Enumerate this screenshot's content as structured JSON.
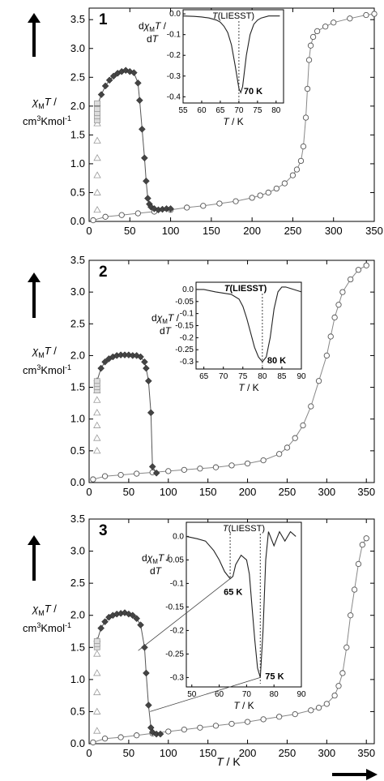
{
  "ylabel": {
    "line1": "χMT /",
    "line2": "cm3Kmol-1"
  },
  "xlabel": "T / K",
  "inset_ylabel": {
    "line1": "dχMT /",
    "line2": "dT"
  },
  "inset_xlabel": "T / K",
  "liesst_label": "T(LIESST)",
  "arrow_up": "up-arrow",
  "arrow_right": "right-arrow",
  "chart_data": [
    {
      "panel": "1",
      "type": "scatter",
      "xlim": [
        0,
        350
      ],
      "ylim": [
        0,
        3.7
      ],
      "xticks": [
        0,
        50,
        100,
        150,
        200,
        250,
        300,
        350
      ],
      "yticks": [
        0.0,
        0.5,
        1.0,
        1.5,
        2.0,
        2.5,
        3.0,
        3.5
      ],
      "series": [
        {
          "marker": "circle",
          "x": [
            5,
            20,
            40,
            60,
            80,
            100,
            120,
            140,
            160,
            180,
            200,
            210,
            220,
            230,
            240,
            250,
            255,
            260,
            263,
            266,
            268,
            270,
            272,
            275,
            280,
            290,
            300,
            320,
            340,
            350
          ],
          "y": [
            0.02,
            0.08,
            0.11,
            0.14,
            0.17,
            0.2,
            0.24,
            0.27,
            0.31,
            0.35,
            0.41,
            0.45,
            0.5,
            0.57,
            0.66,
            0.8,
            0.9,
            1.05,
            1.3,
            1.8,
            2.3,
            2.8,
            3.05,
            3.2,
            3.3,
            3.38,
            3.45,
            3.52,
            3.58,
            3.6
          ]
        },
        {
          "marker": "diamond",
          "x": [
            10,
            15,
            20,
            25,
            30,
            35,
            40,
            45,
            50,
            55,
            60,
            62,
            65,
            68,
            70,
            72,
            74,
            76,
            80,
            85,
            90,
            95,
            100
          ],
          "y": [
            2.0,
            2.2,
            2.35,
            2.45,
            2.52,
            2.57,
            2.6,
            2.62,
            2.6,
            2.58,
            2.4,
            2.1,
            1.6,
            1.1,
            0.7,
            0.4,
            0.3,
            0.25,
            0.22,
            0.2,
            0.21,
            0.22,
            0.22
          ]
        },
        {
          "marker": "triangle",
          "x": [
            10,
            10,
            10,
            10,
            10,
            10
          ],
          "y": [
            0.2,
            0.5,
            0.8,
            1.1,
            1.4,
            1.7
          ]
        },
        {
          "marker": "square",
          "x": [
            10,
            10,
            10,
            10,
            10
          ],
          "y": [
            1.75,
            1.82,
            1.88,
            1.95,
            2.05
          ]
        }
      ],
      "inset": {
        "xlim": [
          55,
          82
        ],
        "ylim": [
          -0.43,
          0.02
        ],
        "xticks": [
          55,
          60,
          65,
          70,
          75,
          80
        ],
        "yticks": [
          0.0,
          -0.1,
          -0.2,
          -0.3,
          -0.4
        ],
        "curve_x": [
          55,
          58,
          60,
          62,
          64,
          65,
          66,
          67,
          68,
          69,
          70,
          70.5,
          71,
          72,
          73,
          74,
          75,
          76,
          78,
          80,
          81
        ],
        "curve_y": [
          -0.01,
          -0.012,
          -0.015,
          -0.02,
          -0.03,
          -0.04,
          -0.06,
          -0.09,
          -0.15,
          -0.25,
          -0.36,
          -0.38,
          -0.35,
          -0.2,
          -0.1,
          -0.05,
          -0.03,
          -0.02,
          -0.01,
          -0.01,
          -0.01
        ],
        "min_x": 70,
        "annotation": "70 K"
      }
    },
    {
      "panel": "2",
      "type": "scatter",
      "xlim": [
        0,
        360
      ],
      "ylim": [
        0,
        3.5
      ],
      "xticks": [
        0,
        50,
        100,
        150,
        200,
        250,
        300,
        350
      ],
      "yticks": [
        0.0,
        0.5,
        1.0,
        1.5,
        2.0,
        2.5,
        3.0,
        3.5
      ],
      "series": [
        {
          "marker": "circle",
          "x": [
            5,
            20,
            40,
            60,
            80,
            100,
            120,
            140,
            160,
            180,
            200,
            220,
            240,
            250,
            260,
            270,
            280,
            290,
            300,
            305,
            310,
            315,
            320,
            330,
            340,
            350
          ],
          "y": [
            0.05,
            0.1,
            0.12,
            0.14,
            0.16,
            0.18,
            0.2,
            0.22,
            0.24,
            0.27,
            0.3,
            0.35,
            0.45,
            0.55,
            0.7,
            0.9,
            1.2,
            1.6,
            2.0,
            2.3,
            2.6,
            2.8,
            3.0,
            3.2,
            3.35,
            3.42
          ]
        },
        {
          "marker": "diamond",
          "x": [
            10,
            15,
            20,
            25,
            30,
            35,
            40,
            45,
            50,
            55,
            60,
            65,
            70,
            72,
            75,
            78,
            80,
            85
          ],
          "y": [
            1.6,
            1.8,
            1.9,
            1.95,
            1.98,
            2.0,
            2.01,
            2.01,
            2.01,
            2.0,
            2.0,
            1.98,
            1.9,
            1.8,
            1.6,
            1.1,
            0.25,
            0.15
          ]
        },
        {
          "marker": "triangle",
          "x": [
            10,
            10,
            10,
            10,
            10,
            10
          ],
          "y": [
            0.5,
            0.7,
            0.9,
            1.1,
            1.3,
            1.45
          ]
        },
        {
          "marker": "square",
          "x": [
            10,
            10,
            10,
            10
          ],
          "y": [
            1.45,
            1.5,
            1.55,
            1.6
          ]
        }
      ],
      "inset": {
        "xlim": [
          63,
          90
        ],
        "ylim": [
          -0.33,
          0.03
        ],
        "xticks": [
          65,
          70,
          75,
          80,
          85,
          90
        ],
        "yticks": [
          0.0,
          -0.05,
          -0.1,
          -0.15,
          -0.2,
          -0.25,
          -0.3
        ],
        "curve_x": [
          63,
          65,
          68,
          70,
          72,
          74,
          75,
          76,
          77,
          78,
          79,
          80,
          81,
          82,
          83,
          84,
          85,
          86,
          87,
          88,
          89,
          90
        ],
        "curve_y": [
          0.0,
          0.0,
          -0.01,
          -0.015,
          -0.02,
          -0.04,
          -0.07,
          -0.12,
          -0.18,
          -0.24,
          -0.28,
          -0.3,
          -0.28,
          -0.2,
          -0.08,
          -0.01,
          0.01,
          0.01,
          0.005,
          0.0,
          -0.005,
          -0.01
        ],
        "min_x": 80,
        "annotation": "80 K"
      }
    },
    {
      "panel": "3",
      "type": "scatter",
      "xlim": [
        0,
        360
      ],
      "ylim": [
        0,
        3.5
      ],
      "xticks": [
        0,
        50,
        100,
        150,
        200,
        250,
        300,
        350
      ],
      "yticks": [
        0.0,
        0.5,
        1.0,
        1.5,
        2.0,
        2.5,
        3.0,
        3.5
      ],
      "series": [
        {
          "marker": "circle",
          "x": [
            5,
            20,
            40,
            60,
            80,
            100,
            120,
            140,
            160,
            180,
            200,
            220,
            240,
            260,
            280,
            290,
            300,
            310,
            315,
            320,
            325,
            330,
            335,
            340,
            345,
            350
          ],
          "y": [
            0.02,
            0.08,
            0.1,
            0.13,
            0.16,
            0.19,
            0.22,
            0.25,
            0.28,
            0.31,
            0.34,
            0.38,
            0.42,
            0.46,
            0.52,
            0.56,
            0.62,
            0.75,
            0.9,
            1.1,
            1.5,
            2.0,
            2.4,
            2.8,
            3.1,
            3.2
          ]
        },
        {
          "marker": "diamond",
          "x": [
            10,
            15,
            20,
            25,
            30,
            35,
            40,
            45,
            50,
            55,
            60,
            65,
            70,
            72,
            75,
            78,
            80,
            85,
            90
          ],
          "y": [
            1.6,
            1.8,
            1.9,
            1.97,
            2.0,
            2.02,
            2.03,
            2.04,
            2.02,
            2.0,
            1.95,
            1.85,
            1.5,
            1.1,
            0.6,
            0.25,
            0.18,
            0.15,
            0.15
          ]
        },
        {
          "marker": "triangle",
          "x": [
            10,
            10,
            10,
            10,
            10
          ],
          "y": [
            0.2,
            0.5,
            0.8,
            1.1,
            1.4
          ]
        },
        {
          "marker": "square",
          "x": [
            10,
            10,
            10
          ],
          "y": [
            1.5,
            1.55,
            1.6
          ]
        }
      ],
      "inset": {
        "xlim": [
          48,
          90
        ],
        "ylim": [
          -0.32,
          0.03
        ],
        "xticks": [
          50,
          60,
          70,
          80,
          90
        ],
        "yticks": [
          0.0,
          -0.05,
          -0.1,
          -0.15,
          -0.2,
          -0.25,
          -0.3
        ],
        "curve_x": [
          48,
          52,
          55,
          58,
          60,
          62,
          64,
          65,
          66,
          68,
          70,
          71,
          72,
          73,
          74,
          75,
          76,
          77,
          78,
          80,
          82,
          84,
          86,
          88
        ],
        "curve_y": [
          0.0,
          -0.005,
          -0.01,
          -0.03,
          -0.05,
          -0.075,
          -0.09,
          -0.085,
          -0.06,
          -0.04,
          -0.05,
          -0.08,
          -0.15,
          -0.22,
          -0.28,
          -0.3,
          -0.2,
          -0.05,
          0.01,
          -0.02,
          0.01,
          -0.01,
          0.01,
          0.0
        ],
        "min_x": 75,
        "annotation": "75 K",
        "min2_x": 64,
        "annotation2": "65 K"
      }
    }
  ]
}
